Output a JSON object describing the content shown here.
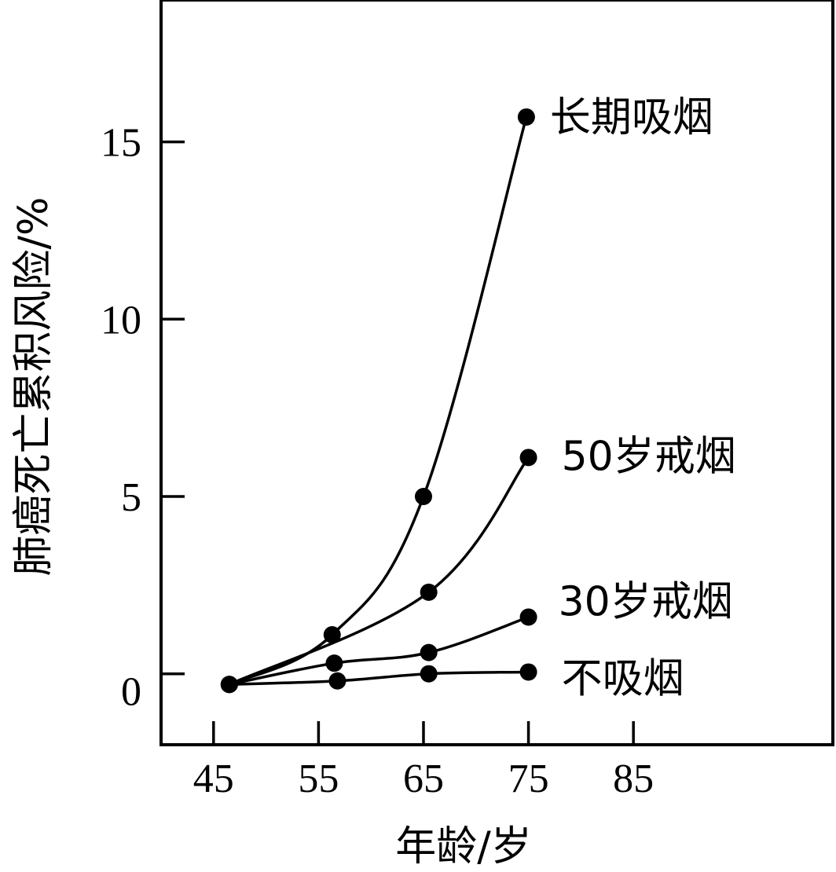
{
  "chart_data": {
    "type": "line",
    "xlabel": "年龄/岁",
    "ylabel": "肺癌死亡累积风险/%",
    "x_ticks": [
      45,
      55,
      65,
      75,
      85
    ],
    "y_ticks": [
      0,
      5,
      10,
      15
    ],
    "xlim": [
      40,
      104
    ],
    "ylim": [
      -2,
      19
    ],
    "grid": false,
    "series": [
      {
        "name": "长期吸烟",
        "x": [
          46.5,
          56.3,
          65.0,
          74.8
        ],
        "y": [
          -0.3,
          1.1,
          5.0,
          15.7
        ]
      },
      {
        "name": "50岁戒烟",
        "x": [
          46.5,
          65.5,
          75.0
        ],
        "y": [
          -0.3,
          2.3,
          6.1
        ]
      },
      {
        "name": "30岁戒烟",
        "x": [
          46.5,
          56.5,
          65.5,
          75.0
        ],
        "y": [
          -0.3,
          0.3,
          0.6,
          1.6
        ]
      },
      {
        "name": "不吸烟",
        "x": [
          46.5,
          56.8,
          65.5,
          75.0
        ],
        "y": [
          -0.3,
          -0.2,
          0.0,
          0.05
        ]
      }
    ]
  }
}
